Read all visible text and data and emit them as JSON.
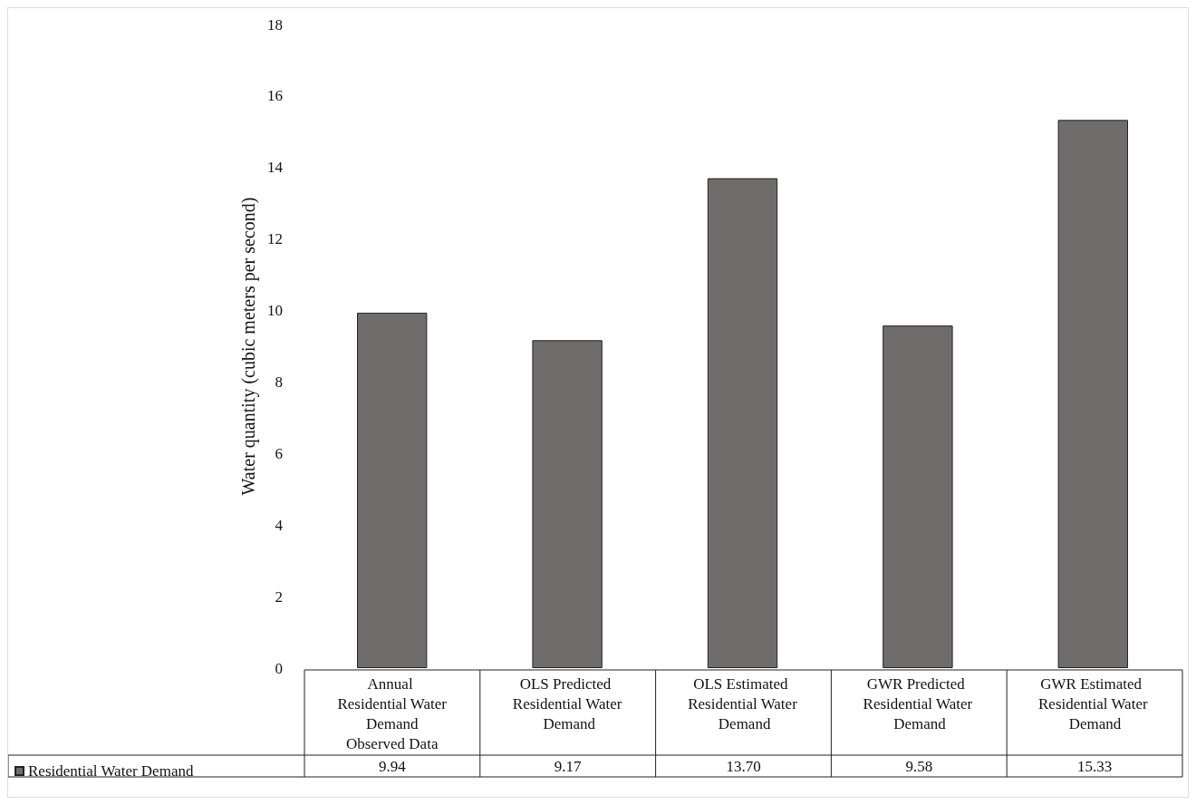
{
  "chart_data": {
    "type": "bar",
    "ylabel": "Water quantity (cubic meters per second)",
    "categories": [
      "Annual Residential Water Demand Observed Data",
      "OLS Predicted Residential Water Demand",
      "OLS Estimated Residential Water Demand",
      "GWR Predicted Residential Water Demand",
      "GWR Estimated Residential Water Demand"
    ],
    "series": [
      {
        "name": "Residential Water Demand",
        "color": "#716c6c",
        "values": [
          9.94,
          9.17,
          13.7,
          9.58,
          15.33
        ],
        "value_labels": [
          "9.94",
          "9.17",
          "13.70",
          "9.58",
          "15.33"
        ]
      }
    ],
    "ylim": [
      0,
      18
    ],
    "yticks": [
      0,
      2,
      4,
      6,
      8,
      10,
      12,
      14,
      16,
      18
    ],
    "grid": false,
    "legend": "bottom"
  }
}
